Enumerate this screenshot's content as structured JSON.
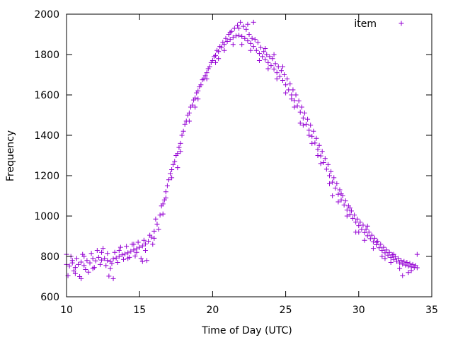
{
  "chart_data": {
    "type": "scatter",
    "title": "",
    "xlabel": "Time of Day (UTC)",
    "ylabel": "Frequency",
    "xlim": [
      10,
      35
    ],
    "ylim": [
      600,
      2000
    ],
    "xticks": [
      10,
      15,
      20,
      25,
      30,
      35
    ],
    "yticks": [
      600,
      800,
      1000,
      1200,
      1400,
      1600,
      1800,
      2000
    ],
    "grid": false,
    "legend_position": "top-right",
    "marker": "+",
    "color": "#9400d3",
    "series": [
      {
        "name": "item",
        "points": [
          [
            10.0,
            760
          ],
          [
            10.2,
            752
          ],
          [
            10.4,
            768
          ],
          [
            10.6,
            745
          ],
          [
            10.8,
            760
          ],
          [
            11.0,
            772
          ],
          [
            11.2,
            755
          ],
          [
            11.4,
            780
          ],
          [
            11.6,
            768
          ],
          [
            11.8,
            790
          ],
          [
            12.0,
            778
          ],
          [
            12.2,
            795
          ],
          [
            12.4,
            782
          ],
          [
            12.6,
            790
          ],
          [
            12.8,
            780
          ],
          [
            13.0,
            775
          ],
          [
            13.2,
            788
          ],
          [
            13.4,
            792
          ],
          [
            13.6,
            800
          ],
          [
            13.8,
            808
          ],
          [
            14.0,
            812
          ],
          [
            14.2,
            818
          ],
          [
            14.4,
            825
          ],
          [
            14.6,
            832
          ],
          [
            14.8,
            838
          ],
          [
            15.0,
            845
          ],
          [
            15.2,
            852
          ],
          [
            15.4,
            862
          ],
          [
            15.6,
            875
          ],
          [
            15.8,
            895
          ],
          [
            16.0,
            925
          ],
          [
            16.2,
            960
          ],
          [
            16.4,
            1005
          ],
          [
            16.6,
            1060
          ],
          [
            16.8,
            1120
          ],
          [
            17.0,
            1180
          ],
          [
            17.2,
            1230
          ],
          [
            17.4,
            1270
          ],
          [
            17.6,
            1310
          ],
          [
            17.8,
            1360
          ],
          [
            18.0,
            1420
          ],
          [
            18.2,
            1470
          ],
          [
            18.4,
            1510
          ],
          [
            18.6,
            1550
          ],
          [
            18.8,
            1585
          ],
          [
            19.0,
            1620
          ],
          [
            19.2,
            1650
          ],
          [
            19.4,
            1680
          ],
          [
            19.6,
            1710
          ],
          [
            19.8,
            1740
          ],
          [
            20.0,
            1770
          ],
          [
            20.2,
            1795
          ],
          [
            20.4,
            1815
          ],
          [
            20.6,
            1835
          ],
          [
            20.8,
            1850
          ],
          [
            21.0,
            1865
          ],
          [
            21.2,
            1875
          ],
          [
            21.4,
            1885
          ],
          [
            21.6,
            1892
          ],
          [
            21.8,
            1895
          ],
          [
            22.0,
            1890
          ],
          [
            22.2,
            1880
          ],
          [
            22.4,
            1868
          ],
          [
            22.6,
            1855
          ],
          [
            22.8,
            1840
          ],
          [
            23.0,
            1820
          ],
          [
            23.2,
            1805
          ],
          [
            23.4,
            1790
          ],
          [
            23.6,
            1775
          ],
          [
            23.8,
            1760
          ],
          [
            24.0,
            1745
          ],
          [
            24.2,
            1728
          ],
          [
            24.4,
            1710
          ],
          [
            24.6,
            1692
          ],
          [
            24.8,
            1672
          ],
          [
            25.0,
            1650
          ],
          [
            25.2,
            1625
          ],
          [
            25.4,
            1600
          ],
          [
            25.6,
            1572
          ],
          [
            25.8,
            1545
          ],
          [
            26.0,
            1515
          ],
          [
            26.2,
            1485
          ],
          [
            26.4,
            1455
          ],
          [
            26.6,
            1425
          ],
          [
            26.8,
            1395
          ],
          [
            27.0,
            1362
          ],
          [
            27.2,
            1330
          ],
          [
            27.4,
            1298
          ],
          [
            27.6,
            1265
          ],
          [
            27.8,
            1232
          ],
          [
            28.0,
            1200
          ],
          [
            28.2,
            1168
          ],
          [
            28.4,
            1138
          ],
          [
            28.6,
            1108
          ],
          [
            28.8,
            1080
          ],
          [
            29.0,
            1055
          ],
          [
            29.2,
            1030
          ],
          [
            29.4,
            1008
          ],
          [
            29.6,
            988
          ],
          [
            29.8,
            970
          ],
          [
            30.0,
            952
          ],
          [
            30.2,
            935
          ],
          [
            30.4,
            918
          ],
          [
            30.6,
            902
          ],
          [
            30.8,
            888
          ],
          [
            31.0,
            872
          ],
          [
            31.2,
            858
          ],
          [
            31.4,
            843
          ],
          [
            31.6,
            830
          ],
          [
            31.8,
            818
          ],
          [
            32.0,
            806
          ],
          [
            32.2,
            795
          ],
          [
            32.4,
            785
          ],
          [
            32.6,
            776
          ],
          [
            32.8,
            768
          ],
          [
            33.0,
            762
          ],
          [
            33.2,
            757
          ],
          [
            33.4,
            752
          ],
          [
            33.6,
            748
          ],
          [
            33.8,
            745
          ],
          [
            34.0,
            744
          ],
          [
            10.1,
            705
          ],
          [
            10.3,
            800
          ],
          [
            10.5,
            728
          ],
          [
            10.7,
            790
          ],
          [
            10.9,
            700
          ],
          [
            11.1,
            810
          ],
          [
            11.3,
            735
          ],
          [
            11.5,
            722
          ],
          [
            11.7,
            815
          ],
          [
            11.9,
            745
          ],
          [
            12.1,
            830
          ],
          [
            12.3,
            760
          ],
          [
            12.5,
            840
          ],
          [
            12.7,
            755
          ],
          [
            12.9,
            702
          ],
          [
            13.1,
            765
          ],
          [
            13.3,
            820
          ],
          [
            13.5,
            770
          ],
          [
            13.7,
            845
          ],
          [
            13.9,
            785
          ],
          [
            14.1,
            850
          ],
          [
            14.3,
            795
          ],
          [
            14.5,
            860
          ],
          [
            14.7,
            802
          ],
          [
            14.9,
            870
          ],
          [
            15.1,
            790
          ],
          [
            15.3,
            880
          ],
          [
            15.5,
            780
          ],
          [
            15.7,
            905
          ],
          [
            15.9,
            860
          ],
          [
            16.1,
            985
          ],
          [
            16.3,
            935
          ],
          [
            16.5,
            1050
          ],
          [
            16.7,
            1080
          ],
          [
            16.9,
            1150
          ],
          [
            17.1,
            1210
          ],
          [
            17.3,
            1255
          ],
          [
            17.5,
            1300
          ],
          [
            17.7,
            1340
          ],
          [
            17.9,
            1400
          ],
          [
            18.1,
            1455
          ],
          [
            18.3,
            1500
          ],
          [
            18.5,
            1540
          ],
          [
            18.7,
            1575
          ],
          [
            18.9,
            1610
          ],
          [
            19.1,
            1640
          ],
          [
            19.3,
            1675
          ],
          [
            19.5,
            1695
          ],
          [
            19.7,
            1730
          ],
          [
            19.9,
            1760
          ],
          [
            20.1,
            1790
          ],
          [
            20.3,
            1820
          ],
          [
            20.5,
            1840
          ],
          [
            20.7,
            1860
          ],
          [
            20.9,
            1880
          ],
          [
            21.1,
            1900
          ],
          [
            21.3,
            1915
          ],
          [
            21.5,
            1930
          ],
          [
            21.7,
            1945
          ],
          [
            21.9,
            1960
          ],
          [
            22.1,
            1940
          ],
          [
            22.3,
            1925
          ],
          [
            22.5,
            1900
          ],
          [
            22.7,
            1880
          ],
          [
            22.9,
            1875
          ],
          [
            23.1,
            1860
          ],
          [
            23.3,
            1835
          ],
          [
            23.5,
            1815
          ],
          [
            23.7,
            1800
          ],
          [
            23.9,
            1790
          ],
          [
            24.1,
            1780
          ],
          [
            24.3,
            1755
          ],
          [
            24.5,
            1740
          ],
          [
            24.7,
            1720
          ],
          [
            24.9,
            1700
          ],
          [
            25.1,
            1680
          ],
          [
            25.3,
            1655
          ],
          [
            25.5,
            1625
          ],
          [
            25.7,
            1600
          ],
          [
            25.9,
            1570
          ],
          [
            26.1,
            1540
          ],
          [
            26.3,
            1510
          ],
          [
            26.5,
            1480
          ],
          [
            26.7,
            1450
          ],
          [
            26.9,
            1420
          ],
          [
            27.1,
            1385
          ],
          [
            27.3,
            1350
          ],
          [
            27.5,
            1320
          ],
          [
            27.7,
            1285
          ],
          [
            27.9,
            1255
          ],
          [
            28.1,
            1220
          ],
          [
            28.3,
            1190
          ],
          [
            28.5,
            1160
          ],
          [
            28.7,
            1130
          ],
          [
            28.9,
            1100
          ],
          [
            29.1,
            1075
          ],
          [
            29.3,
            1050
          ],
          [
            29.5,
            1025
          ],
          [
            29.7,
            1005
          ],
          [
            29.9,
            985
          ],
          [
            30.1,
            970
          ],
          [
            30.3,
            955
          ],
          [
            30.5,
            935
          ],
          [
            30.7,
            920
          ],
          [
            30.9,
            905
          ],
          [
            31.1,
            890
          ],
          [
            31.3,
            875
          ],
          [
            31.5,
            860
          ],
          [
            31.7,
            845
          ],
          [
            31.9,
            832
          ],
          [
            32.1,
            820
          ],
          [
            32.3,
            808
          ],
          [
            32.5,
            798
          ],
          [
            32.7,
            790
          ],
          [
            32.9,
            780
          ],
          [
            33.1,
            775
          ],
          [
            33.3,
            770
          ],
          [
            33.5,
            765
          ],
          [
            33.7,
            760
          ],
          [
            33.9,
            755
          ],
          [
            10.0,
            810
          ],
          [
            10.6,
            715
          ],
          [
            11.2,
            800
          ],
          [
            11.8,
            740
          ],
          [
            12.4,
            820
          ],
          [
            13.0,
            740
          ],
          [
            13.6,
            830
          ],
          [
            14.2,
            790
          ],
          [
            14.8,
            820
          ],
          [
            15.4,
            830
          ],
          [
            16.0,
            890
          ],
          [
            16.6,
            1010
          ],
          [
            17.2,
            1190
          ],
          [
            17.8,
            1320
          ],
          [
            18.4,
            1470
          ],
          [
            19.0,
            1580
          ],
          [
            19.6,
            1680
          ],
          [
            20.2,
            1760
          ],
          [
            20.8,
            1820
          ],
          [
            21.4,
            1850
          ],
          [
            22.0,
            1850
          ],
          [
            22.6,
            1820
          ],
          [
            23.2,
            1770
          ],
          [
            23.8,
            1730
          ],
          [
            24.4,
            1680
          ],
          [
            25.0,
            1610
          ],
          [
            25.6,
            1540
          ],
          [
            26.2,
            1450
          ],
          [
            26.8,
            1360
          ],
          [
            27.4,
            1260
          ],
          [
            28.0,
            1160
          ],
          [
            28.6,
            1070
          ],
          [
            29.2,
            1000
          ],
          [
            29.8,
            920
          ],
          [
            30.4,
            880
          ],
          [
            31.0,
            840
          ],
          [
            31.6,
            800
          ],
          [
            32.2,
            770
          ],
          [
            32.8,
            740
          ],
          [
            33.4,
            720
          ],
          [
            34.0,
            810
          ],
          [
            10.4,
            780
          ],
          [
            11.0,
            690
          ],
          [
            12.8,
            815
          ],
          [
            13.2,
            690
          ],
          [
            14.6,
            860
          ],
          [
            15.2,
            775
          ],
          [
            16.8,
            1090
          ],
          [
            17.6,
            1240
          ],
          [
            18.8,
            1540
          ],
          [
            20.4,
            1780
          ],
          [
            21.2,
            1910
          ],
          [
            21.8,
            1930
          ],
          [
            22.4,
            1950
          ],
          [
            22.8,
            1960
          ],
          [
            23.6,
            1830
          ],
          [
            24.2,
            1800
          ],
          [
            24.8,
            1740
          ],
          [
            25.4,
            1580
          ],
          [
            26.0,
            1460
          ],
          [
            26.6,
            1400
          ],
          [
            27.2,
            1300
          ],
          [
            28.2,
            1100
          ],
          [
            28.8,
            1110
          ],
          [
            29.4,
            1040
          ],
          [
            30.0,
            920
          ],
          [
            30.6,
            950
          ],
          [
            31.2,
            870
          ],
          [
            31.8,
            790
          ],
          [
            32.4,
            810
          ],
          [
            33.0,
            705
          ],
          [
            33.6,
            730
          ]
        ]
      }
    ]
  }
}
